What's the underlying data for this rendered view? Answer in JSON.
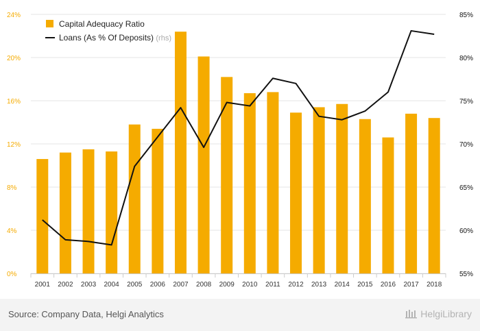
{
  "chart_data": {
    "type": "bar+line",
    "categories": [
      "2001",
      "2002",
      "2003",
      "2004",
      "2005",
      "2006",
      "2007",
      "2008",
      "2009",
      "2010",
      "2011",
      "2012",
      "2013",
      "2014",
      "2015",
      "2016",
      "2017",
      "2018"
    ],
    "series": [
      {
        "name": "Capital Adequacy Ratio",
        "type": "bar",
        "axis": "left",
        "color": "#f5ab00",
        "values": [
          10.6,
          11.2,
          11.5,
          11.3,
          13.8,
          13.4,
          22.4,
          20.1,
          18.2,
          16.7,
          16.8,
          14.9,
          15.4,
          15.7,
          14.3,
          12.6,
          14.8,
          14.4
        ]
      },
      {
        "name": "Loans (As % Of Deposits)",
        "name_suffix": "(rhs)",
        "type": "line",
        "axis": "right",
        "color": "#111111",
        "values": [
          61.2,
          58.9,
          58.7,
          58.3,
          67.4,
          70.8,
          74.2,
          69.6,
          74.8,
          74.4,
          77.6,
          77.0,
          73.2,
          72.8,
          73.8,
          76.0,
          83.1,
          82.7
        ]
      }
    ],
    "yleft": {
      "lim": [
        0,
        24
      ],
      "ticks": [
        "0%",
        "4%",
        "8%",
        "12%",
        "16%",
        "20%",
        "24%"
      ],
      "color": "#f5ab00"
    },
    "yright": {
      "lim": [
        55,
        85
      ],
      "ticks": [
        "55%",
        "60%",
        "65%",
        "70%",
        "75%",
        "80%",
        "85%"
      ],
      "color": "#111111"
    },
    "grid": true,
    "legend": "top-left"
  },
  "footer": {
    "source": "Source: Company Data, Helgi Analytics",
    "brand": "HelgiLibrary"
  }
}
